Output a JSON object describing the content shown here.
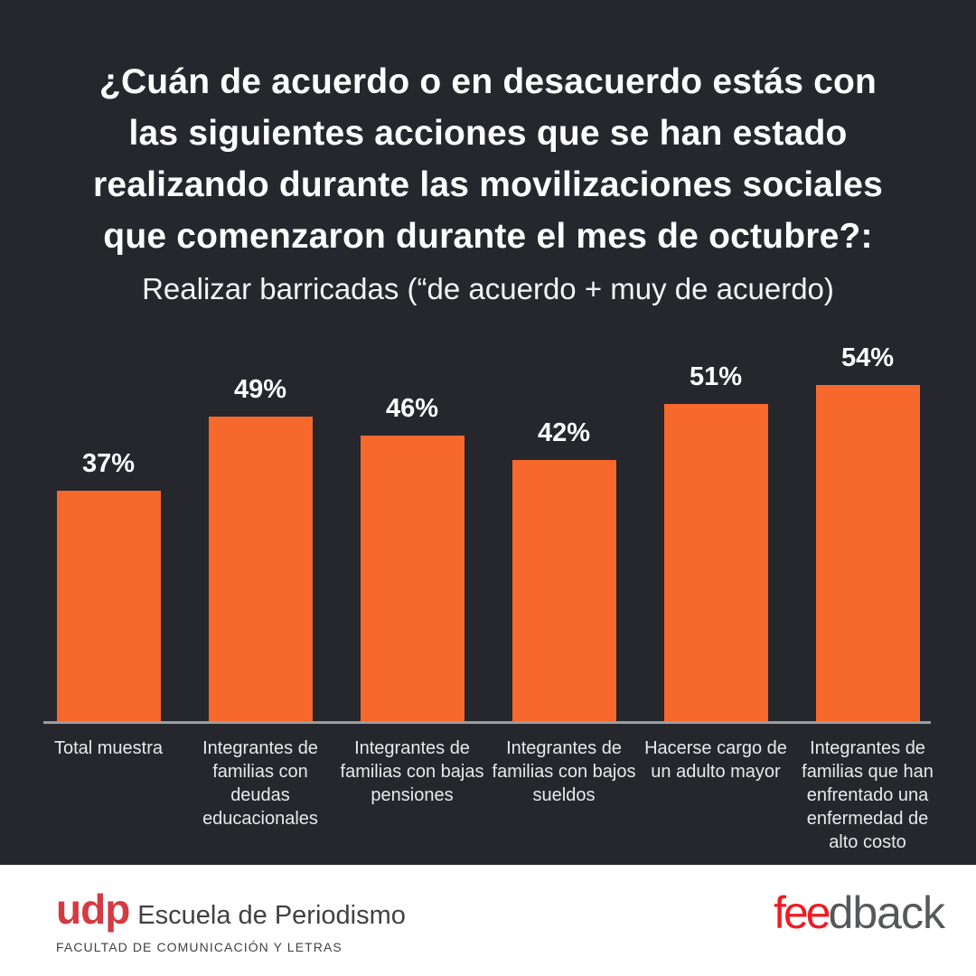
{
  "colors": {
    "background": "#26272d",
    "bar_orange": "#f6682c",
    "axis_gray": "#9b9da0",
    "category_label": "#e8e9ea",
    "value_label": "#ffffff",
    "footer_background": "#ffffff",
    "udp_red": "#d43a42",
    "udp_text": "#414042",
    "feedback_red": "#ed1c24",
    "feedback_gray": "#57585a"
  },
  "title": {
    "lines": [
      "¿Cuán de acuerdo o en desacuerdo estás con",
      "las siguientes acciones que se han estado",
      "realizando durante las movilizaciones sociales",
      "que comenzaron durante el mes de octubre?:"
    ]
  },
  "subtitle": {
    "text": "Realizar barricadas (“de acuerdo + muy de acuerdo)"
  },
  "chart_data": {
    "type": "bar",
    "categories": [
      "Total muestra",
      "Integrantes de familias con deudas educacionales",
      "Integrantes de familias con bajas pensiones",
      "Integrantes de familias con bajos sueldos",
      "Hacerse cargo de un adulto mayor",
      "Integrantes de familias que han enfrentado una enfermedad de alto costo"
    ],
    "values": [
      37,
      49,
      46,
      42,
      51,
      54
    ],
    "value_labels": [
      "37%",
      "49%",
      "46%",
      "42%",
      "51%",
      "54%"
    ],
    "ylim": [
      0,
      58
    ],
    "grid": false,
    "legend": false,
    "bar_color": "#f6682c"
  },
  "footer": {
    "udp": {
      "logo": "udp",
      "name": "Escuela de Periodismo",
      "sub": "FACULTAD DE COMUNICACIÓN Y LETRAS"
    },
    "feedback": {
      "part1": "fee",
      "part2": "dback"
    }
  }
}
